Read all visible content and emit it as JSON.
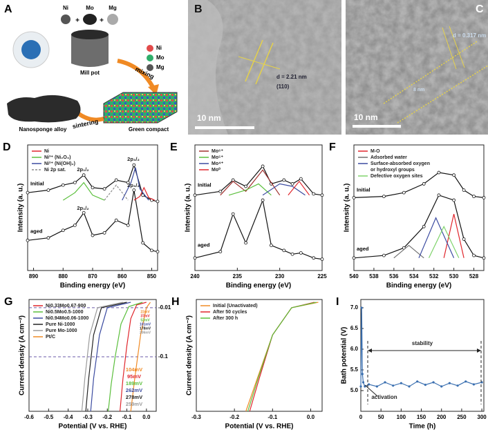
{
  "panel_a": {
    "letter": "A",
    "elements": [
      "Ni",
      "Mo",
      "Mg"
    ],
    "plus": "+",
    "mill_pot": "Mill pot",
    "mixing": "mixing",
    "legend": [
      "Ni",
      "Mo",
      "Mg"
    ],
    "green_compact": "Green compact",
    "sintering": "sintering",
    "alloy": "Nanosponge alloy"
  },
  "panel_b": {
    "letter": "B",
    "spacing": "d = 2.21 nm",
    "plane": "(110)",
    "scale": "10 nm"
  },
  "panel_c": {
    "letter": "C",
    "spacing": "d = 0.317 nm",
    "width": "8 nm",
    "scale": "10 nm"
  },
  "chart_data": [
    {
      "type": "line",
      "panel": "D",
      "xlabel": "Binding energy (eV)",
      "ylabel": "Intensity (a. u.)",
      "xlim": [
        892,
        848
      ],
      "xticks": [
        890,
        880,
        870,
        860,
        850
      ],
      "ylim": [
        0,
        10
      ],
      "legend": "upper left",
      "curves": [
        {
          "name": "Initial",
          "x": [
            892,
            885,
            880,
            876,
            873,
            870,
            866,
            862,
            858,
            856,
            853,
            850,
            848
          ],
          "values": [
            6.2,
            6.4,
            6.8,
            7.0,
            7.6,
            6.6,
            6.5,
            7.2,
            7.0,
            8.4,
            6.0,
            5.6,
            5.5
          ]
        },
        {
          "name": "aged",
          "x": [
            892,
            885,
            880,
            876,
            873,
            870,
            866,
            862,
            858,
            856,
            853,
            850,
            848
          ],
          "values": [
            2.4,
            2.6,
            3.2,
            3.6,
            4.6,
            2.8,
            3.0,
            4.0,
            3.6,
            6.4,
            2.2,
            1.6,
            1.5
          ]
        }
      ],
      "series": [
        {
          "name": "Ni",
          "color": "#e0242a",
          "x": [
            856,
            854,
            852.6,
            851,
            849
          ],
          "values": [
            5.6,
            5.9,
            6.6,
            5.8,
            5.6
          ]
        },
        {
          "name": "Ni³⁺ (Ni₂O₃)",
          "color": "#5bbf3c",
          "x": [
            880,
            876,
            873,
            870,
            866
          ],
          "values": [
            5.6,
            6.2,
            7.0,
            6.0,
            5.6
          ]
        },
        {
          "name": "Ni²⁺ (Ni(OH)₂)",
          "color": "#3a4aa0",
          "x": [
            860,
            857,
            855.5,
            854,
            851
          ],
          "values": [
            5.6,
            7.0,
            8.2,
            6.5,
            5.6
          ]
        },
        {
          "name": "Ni 2p sat.",
          "color": "#8a8a8a",
          "dash": true,
          "x": [
            866,
            862,
            858
          ],
          "values": [
            5.6,
            6.8,
            5.6
          ]
        }
      ],
      "annotations": [
        {
          "text": "2p₃/₂"
        },
        {
          "text": "2p₁/₂"
        },
        {
          "text": "2p₃/₂"
        },
        {
          "text": "2p₁/₂"
        }
      ]
    },
    {
      "type": "line",
      "panel": "E",
      "xlabel": "Binding energy (eV)",
      "ylabel": "Intensity (a. u.)",
      "xlim": [
        240,
        225
      ],
      "xticks": [
        240,
        235,
        230,
        225
      ],
      "ylim": [
        0,
        10
      ],
      "legend": "upper left",
      "curves": [
        {
          "name": "Initial",
          "x": [
            240,
            237,
            235.5,
            234,
            232,
            231,
            229.5,
            228.5,
            227.5,
            226,
            225
          ],
          "values": [
            6.0,
            6.3,
            7.2,
            6.7,
            8.3,
            6.9,
            7.2,
            6.9,
            7.3,
            6.1,
            6.0
          ]
        },
        {
          "name": "aged",
          "x": [
            240,
            237,
            235.5,
            234,
            232,
            231,
            229.5,
            228.5,
            227.5,
            226,
            225
          ],
          "values": [
            1.0,
            1.5,
            4.5,
            2.2,
            5.6,
            2.0,
            1.6,
            1.3,
            1.4,
            1.0,
            0.9
          ]
        }
      ],
      "series": [
        {
          "name": "Mo⁶⁺",
          "color": "#a0302e",
          "x": [
            237,
            235.5,
            234,
            232,
            230
          ],
          "values": [
            6.0,
            7.1,
            6.3,
            8.0,
            6.0
          ]
        },
        {
          "name": "Mo⁵⁺",
          "color": "#5bbf3c",
          "x": [
            236,
            234,
            232.5,
            231
          ],
          "values": [
            6.0,
            6.4,
            6.9,
            6.0
          ]
        },
        {
          "name": "Mo⁴⁺",
          "color": "#3a4aa0",
          "x": [
            232,
            230,
            228.5,
            227
          ],
          "values": [
            6.0,
            6.9,
            6.7,
            6.0
          ]
        },
        {
          "name": "Mo⁰",
          "color": "#e0242a",
          "x": [
            229,
            227.7,
            226.5
          ],
          "values": [
            6.0,
            7.1,
            6.0
          ]
        }
      ],
      "annotations": []
    },
    {
      "type": "line",
      "panel": "F",
      "xlabel": "Binding energy (eV)",
      "ylabel": "Intensity (a. u.)",
      "xlim": [
        540,
        527
      ],
      "xticks": [
        540,
        538,
        536,
        534,
        532,
        530,
        528
      ],
      "ylim": [
        0,
        10
      ],
      "legend": "upper left",
      "curves": [
        {
          "name": "Initial",
          "x": [
            540,
            537,
            535,
            533,
            531.5,
            530,
            529,
            528,
            527
          ],
          "values": [
            5.8,
            5.9,
            6.2,
            6.9,
            7.8,
            7.6,
            6.4,
            5.9,
            5.8
          ]
        },
        {
          "name": "aged",
          "x": [
            540,
            537,
            535,
            533,
            531.5,
            530,
            529,
            528,
            527
          ],
          "values": [
            1.0,
            1.2,
            1.8,
            3.5,
            6.0,
            5.6,
            2.5,
            1.2,
            1.0
          ]
        }
      ],
      "series": [
        {
          "name": "M-O",
          "color": "#e0242a",
          "x": [
            531,
            530,
            529
          ],
          "values": [
            1.0,
            4.5,
            1.0
          ]
        },
        {
          "name": "Adsorbed water",
          "color": "#6f6f6f",
          "x": [
            536,
            534.5,
            533
          ],
          "values": [
            1.0,
            2.0,
            1.0
          ]
        },
        {
          "name": "Surface-absorbed oxygen",
          "color": "#3a4aa0",
          "x": [
            533.5,
            531.8,
            530
          ],
          "values": [
            1.0,
            4.2,
            1.0
          ]
        },
        {
          "name": "or hydroxyl groups",
          "color": null,
          "x": [],
          "values": []
        },
        {
          "name": "Defective oxygen sites",
          "color": "#7fd36b",
          "x": [
            532.5,
            531,
            529.5
          ],
          "values": [
            1.0,
            3.5,
            1.0
          ]
        }
      ],
      "annotations": []
    },
    {
      "type": "line",
      "panel": "G",
      "xlabel": "Potential (V vs. RHE)",
      "ylabel": "Current density (A cm⁻²)",
      "xlim": [
        -0.6,
        0.05
      ],
      "xticks": [
        -0.6,
        -0.5,
        -0.4,
        -0.3,
        -0.2,
        -0.1,
        {
          "value": 0,
          "label": "0.0"
        }
      ],
      "ylim": [
        -0.2,
        0.005
      ],
      "legend": "upper left",
      "refs": [
        -0.01,
        -0.1
      ],
      "series": [
        {
          "name": "Ni0.33Mo0.67-900",
          "color": "#e0242a",
          "x": [
            0.0,
            -0.05,
            -0.08,
            -0.1,
            -0.12,
            -0.135
          ],
          "values": [
            0,
            -0.005,
            -0.03,
            -0.08,
            -0.14,
            -0.2
          ]
        },
        {
          "name": "Ni0.5Mo0.5-1000",
          "color": "#5bbf3c",
          "x": [
            -0.02,
            -0.09,
            -0.13,
            -0.16,
            -0.18,
            -0.195
          ],
          "values": [
            0,
            -0.008,
            -0.04,
            -0.1,
            -0.15,
            -0.2
          ]
        },
        {
          "name": "Ni0.94Mo0.06-1000",
          "color": "#3a4aa0",
          "x": [
            -0.08,
            -0.2,
            -0.24,
            -0.27,
            -0.285
          ],
          "values": [
            0,
            -0.01,
            -0.06,
            -0.14,
            -0.2
          ]
        },
        {
          "name": "Pure Ni-1000",
          "color": "#222222",
          "x": [
            -0.1,
            -0.23,
            -0.27,
            -0.295,
            -0.31
          ],
          "values": [
            0,
            -0.01,
            -0.06,
            -0.14,
            -0.2
          ]
        },
        {
          "name": "Pure Mo-1000",
          "color": "#9a9a9a",
          "x": [
            -0.12,
            -0.25,
            -0.29,
            -0.315,
            -0.33
          ],
          "values": [
            0,
            -0.01,
            -0.06,
            -0.14,
            -0.2
          ]
        },
        {
          "name": "Pt/C",
          "color": "#f08a24",
          "x": [
            0.02,
            0.0,
            -0.03,
            -0.06,
            -0.08
          ],
          "values": [
            0,
            -0.01,
            -0.06,
            -0.14,
            -0.2
          ]
        }
      ],
      "annotations": [
        {
          "text": "22mV",
          "color": "#f08a24"
        },
        {
          "text": "37mV",
          "color": "#e0242a"
        },
        {
          "text": "52mV",
          "color": "#5bbf3c"
        },
        {
          "text": "101mV",
          "color": "#3a4aa0"
        },
        {
          "text": "178mV",
          "color": "#222222"
        },
        {
          "text": "206mV",
          "color": "#9a9a9a"
        },
        {
          "text": "104mV",
          "color": "#f08a24"
        },
        {
          "text": "95mV",
          "color": "#e0242a"
        },
        {
          "text": "189mV",
          "color": "#5bbf3c"
        },
        {
          "text": "262mV",
          "color": "#3a4aa0"
        },
        {
          "text": "278mV",
          "color": "#222222"
        },
        {
          "text": "259mV",
          "color": "#9a9a9a"
        }
      ]
    },
    {
      "type": "line",
      "panel": "H",
      "xlabel": "Potential (V vs. RHE)",
      "ylabel": "Current density (A cm⁻²)",
      "xlim": [
        -0.3,
        0.03
      ],
      "xticks": [
        -0.3,
        -0.2,
        -0.1,
        {
          "value": 0,
          "label": "0.0"
        }
      ],
      "ylim": [
        -0.2,
        0.005
      ],
      "legend": "upper left",
      "series": [
        {
          "name": "Initial (Unactivated)",
          "color": "#f08a24",
          "x": [
            0.02,
            -0.05,
            -0.1,
            -0.14,
            -0.17
          ],
          "values": [
            0,
            -0.01,
            -0.06,
            -0.14,
            -0.2
          ]
        },
        {
          "name": "After 50 cycles",
          "color": "#e0242a",
          "x": [
            0.01,
            -0.05,
            -0.1,
            -0.135,
            -0.16
          ],
          "values": [
            0,
            -0.01,
            -0.06,
            -0.14,
            -0.2
          ]
        },
        {
          "name": "After 300 h",
          "color": "#5bbf3c",
          "x": [
            0.015,
            -0.05,
            -0.1,
            -0.138,
            -0.165
          ],
          "values": [
            0,
            -0.01,
            -0.06,
            -0.14,
            -0.2
          ]
        }
      ],
      "annotations": []
    },
    {
      "type": "line",
      "panel": "I",
      "xlabel": "Time (h)",
      "ylabel": "Bath potential (V)",
      "xlim": [
        0,
        305
      ],
      "xticks": [
        0,
        50,
        100,
        150,
        200,
        250,
        300
      ],
      "ylim": [
        4.5,
        7.2
      ],
      "yticks": [
        {
          "value": 5,
          "label": "5.0"
        },
        5.5,
        {
          "value": 6,
          "label": "6.0"
        },
        6.5,
        {
          "value": 7,
          "label": "7.0"
        }
      ],
      "series": [
        {
          "color": "#3a6fb0",
          "markers": true,
          "x": [
            0,
            2,
            4,
            6,
            10,
            20,
            40,
            60,
            80,
            100,
            120,
            140,
            160,
            180,
            200,
            220,
            240,
            260,
            280,
            300
          ],
          "values": [
            5.1,
            7.0,
            5.4,
            5.2,
            5.1,
            5.15,
            5.1,
            5.2,
            5.12,
            5.18,
            5.1,
            5.22,
            5.14,
            5.2,
            5.1,
            5.18,
            5.12,
            5.22,
            5.15,
            5.2
          ]
        }
      ],
      "annotations": [
        {
          "text": "stability"
        },
        {
          "text": "activation"
        }
      ]
    }
  ]
}
